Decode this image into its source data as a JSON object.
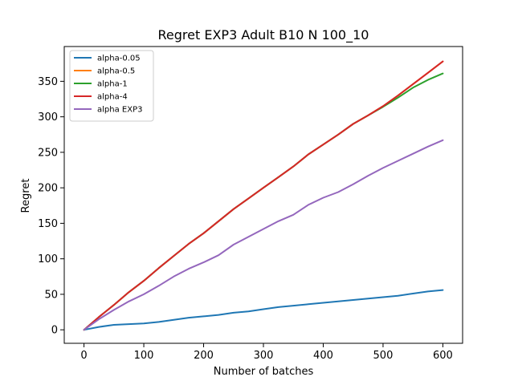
{
  "chart_data": {
    "type": "line",
    "title": "Regret EXP3 Adult B10 N 100_10",
    "xlabel": "Number of batches",
    "ylabel": "Regret",
    "xlim": [
      -33,
      633
    ],
    "ylim": [
      -19,
      399
    ],
    "xticks": [
      0,
      100,
      200,
      300,
      400,
      500,
      600
    ],
    "yticks": [
      0,
      50,
      100,
      150,
      200,
      250,
      300,
      350
    ],
    "grid": false,
    "legend_position": "upper left",
    "x": [
      0,
      25,
      50,
      75,
      100,
      125,
      150,
      175,
      200,
      225,
      250,
      275,
      300,
      325,
      350,
      375,
      400,
      425,
      450,
      475,
      500,
      525,
      550,
      575,
      600
    ],
    "series": [
      {
        "name": "alpha-0.05",
        "color": "#1f77b4",
        "values": [
          0,
          4,
          7,
          8,
          9,
          11,
          14,
          17,
          19,
          21,
          24,
          26,
          29,
          32,
          34,
          36,
          38,
          40,
          42,
          44,
          46,
          48,
          51,
          54,
          56
        ]
      },
      {
        "name": "alpha-0.5",
        "color": "#ff7f0e",
        "values": [
          0,
          18,
          35,
          53,
          69,
          87,
          104,
          121,
          136,
          153,
          170,
          185,
          200,
          215,
          230,
          247,
          261,
          275,
          290,
          302,
          315,
          330,
          346,
          362,
          378
        ]
      },
      {
        "name": "alpha-1",
        "color": "#2ca02c",
        "values": [
          0,
          18,
          35,
          53,
          69,
          87,
          104,
          121,
          136,
          153,
          170,
          185,
          200,
          215,
          230,
          247,
          261,
          275,
          290,
          302,
          314,
          327,
          341,
          352,
          361
        ]
      },
      {
        "name": "alpha-4",
        "color": "#d62728",
        "values": [
          0,
          18,
          35,
          53,
          69,
          87,
          104,
          121,
          136,
          153,
          170,
          185,
          200,
          215,
          230,
          247,
          261,
          275,
          290,
          302,
          315,
          330,
          346,
          362,
          378
        ]
      },
      {
        "name": "alpha EXP3",
        "color": "#9467bd",
        "values": [
          0,
          15,
          28,
          40,
          50,
          62,
          75,
          86,
          95,
          105,
          120,
          131,
          142,
          153,
          162,
          176,
          186,
          194,
          205,
          217,
          228,
          238,
          248,
          258,
          267
        ]
      }
    ]
  }
}
